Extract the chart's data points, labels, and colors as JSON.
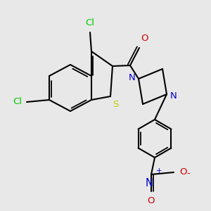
{
  "bg_color": "#e8e8e8",
  "bond_color": "#000000",
  "S_color": "#cccc00",
  "Cl_color": "#00cc00",
  "O_color": "#cc0000",
  "N_color": "#0000cc",
  "lw": 1.5,
  "lw_inner": 1.3,
  "fs": 9.5,
  "figsize": [
    3.0,
    3.0
  ],
  "dpi": 100,
  "xlim": [
    0,
    300
  ],
  "ylim": [
    0,
    300
  ]
}
